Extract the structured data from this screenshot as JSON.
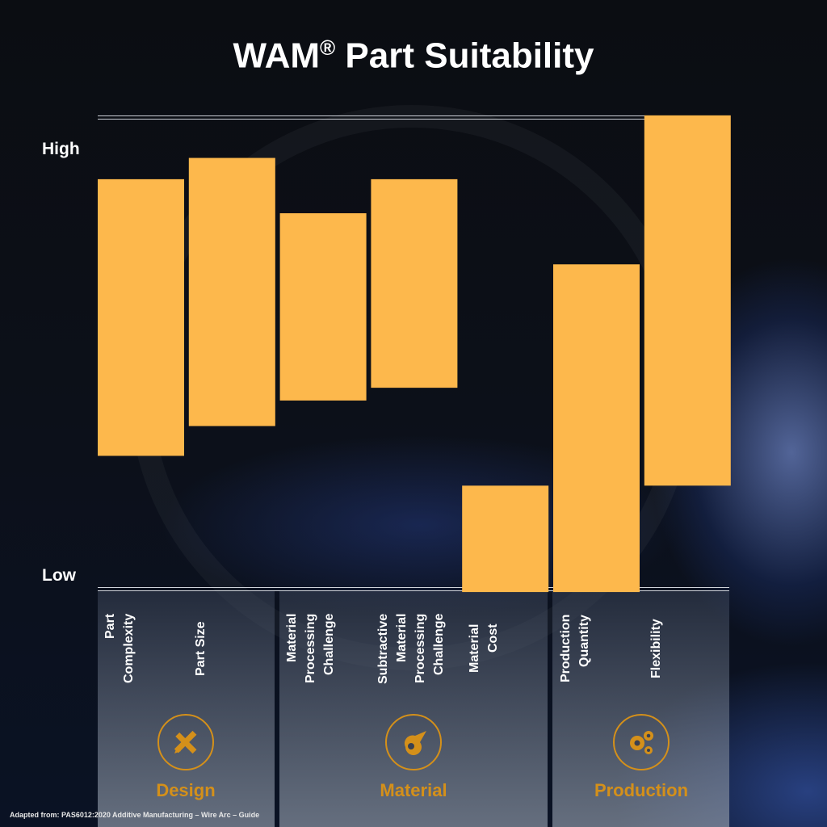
{
  "title": "WAM",
  "title_mark": "®",
  "title_rest": " Part Suitability",
  "chart_data": {
    "type": "floating-bar",
    "title": "WAM® Part Suitability",
    "ylabel_high": "High",
    "ylabel_low": "Low",
    "ylim": [
      -0.04,
      1.09
    ],
    "grid": false,
    "categories": [
      "Part\nComplexity",
      "Part Size",
      "Material\nProcessing\nChallenge",
      "Subtractive\nMaterial\nProcessing\nChallenge",
      "Material\nCost",
      "Production\nQuantity",
      "Flexibility"
    ],
    "ranges": [
      [
        0.28,
        0.93
      ],
      [
        0.35,
        0.98
      ],
      [
        0.41,
        0.85
      ],
      [
        0.44,
        0.93
      ],
      [
        -0.04,
        0.21
      ],
      [
        -0.04,
        0.73
      ],
      [
        0.21,
        1.08
      ]
    ],
    "bar_color": "#fdb84c"
  },
  "groups": [
    {
      "label": "Design",
      "icon": "pencil-ruler-icon"
    },
    {
      "label": "Material",
      "icon": "material-blob-icon"
    },
    {
      "label": "Production",
      "icon": "gears-icon"
    }
  ],
  "accent_color": "#d4901a",
  "source": "Adapted from: PAS6012:2020 Additive Manufacturing – Wire Arc – Guide"
}
